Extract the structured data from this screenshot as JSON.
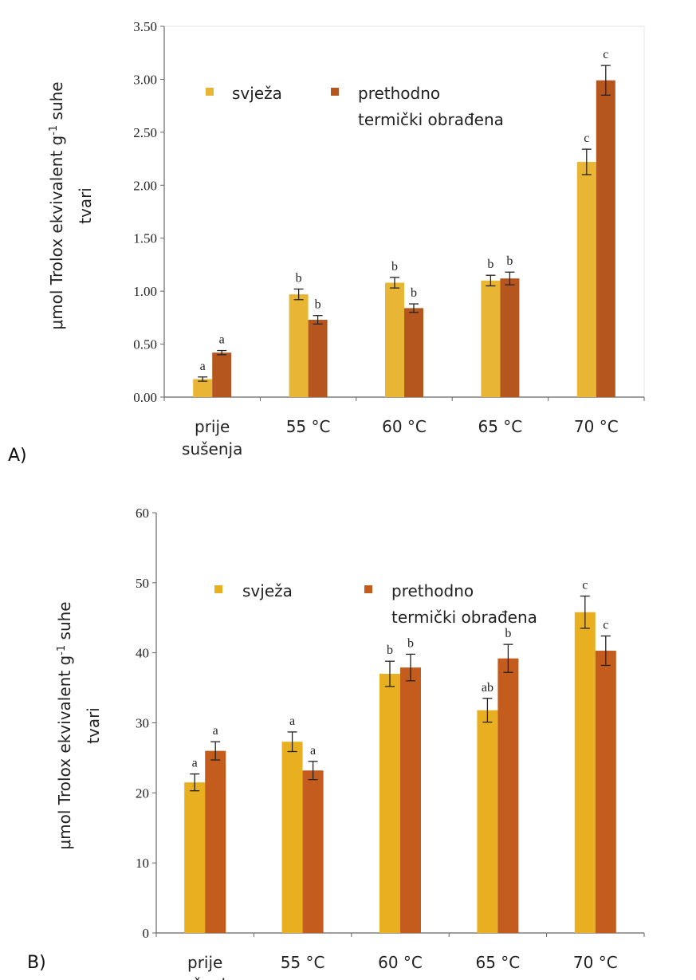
{
  "chart_data": [
    {
      "type": "bar",
      "panel_label": "A)",
      "ylabel_line1": "μmol Trolox ekvivalent g",
      "ylabel_sup": "-1",
      "ylabel_line1_end": " suhe",
      "ylabel_line2": "tvari",
      "ylim": [
        0,
        3.5
      ],
      "yticks": [
        "0.00",
        "0.50",
        "1.00",
        "1.50",
        "2.00",
        "2.50",
        "3.00",
        "3.50"
      ],
      "categories": [
        [
          "prije",
          "sušenja"
        ],
        [
          "55 °C"
        ],
        [
          "60 °C"
        ],
        [
          "65 °C"
        ],
        [
          "70 °C"
        ]
      ],
      "legend": [
        "svježa",
        "prethodno",
        "termički obrađena"
      ],
      "series": [
        {
          "name": "svježa",
          "color": "#e8b535",
          "values": [
            0.17,
            0.97,
            1.08,
            1.1,
            2.22
          ],
          "errors": [
            0.02,
            0.05,
            0.05,
            0.05,
            0.12
          ],
          "letters": [
            "a",
            "b",
            "b",
            "b",
            "c"
          ]
        },
        {
          "name": "prethodno termički obrađena",
          "color": "#b5561e",
          "values": [
            0.42,
            0.73,
            0.84,
            1.12,
            2.99
          ],
          "errors": [
            0.02,
            0.04,
            0.04,
            0.06,
            0.14
          ],
          "letters": [
            "a",
            "b",
            "b",
            "b",
            "c"
          ]
        }
      ]
    },
    {
      "type": "bar",
      "panel_label": "B)",
      "ylabel_line1": "μmol Trolox ekvivalent g",
      "ylabel_sup": "-1",
      "ylabel_line1_end": " suhe",
      "ylabel_line2": "tvari",
      "ylim": [
        0,
        60
      ],
      "yticks": [
        "0",
        "10",
        "20",
        "30",
        "40",
        "50",
        "60"
      ],
      "categories": [
        [
          "prije",
          "sušenja"
        ],
        [
          "55 °C"
        ],
        [
          "60 °C"
        ],
        [
          "65 °C"
        ],
        [
          "70 °C"
        ]
      ],
      "legend": [
        "svježa",
        "prethodno",
        "termički obrađena"
      ],
      "series": [
        {
          "name": "svježa",
          "color": "#e8b020",
          "values": [
            21.5,
            27.3,
            37.0,
            31.8,
            45.8
          ],
          "errors": [
            1.2,
            1.4,
            1.8,
            1.7,
            2.3
          ],
          "letters": [
            "a",
            "a",
            "b",
            "ab",
            "c"
          ]
        },
        {
          "name": "prethodno termički obrađena",
          "color": "#c45c1e",
          "values": [
            26.0,
            23.2,
            37.9,
            39.2,
            40.3
          ],
          "errors": [
            1.3,
            1.3,
            1.9,
            2.0,
            2.1
          ],
          "letters": [
            "a",
            "a",
            "b",
            "b",
            "c"
          ]
        }
      ]
    }
  ]
}
